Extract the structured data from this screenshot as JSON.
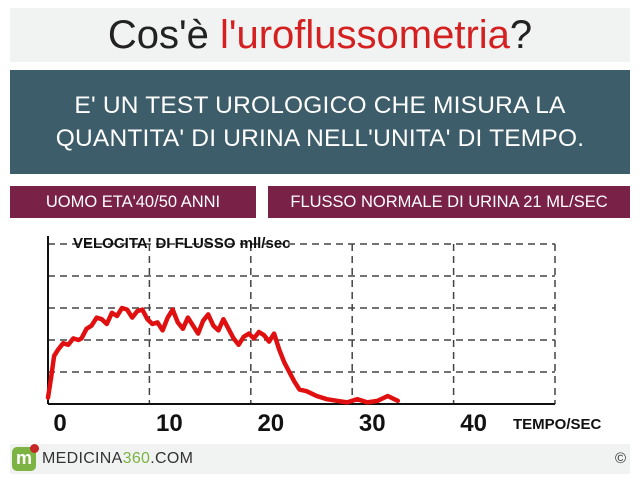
{
  "title": {
    "prefix": "Cos'è ",
    "highlight": "l'uroflussometria",
    "suffix": "?"
  },
  "description": {
    "line1": "E' UN TEST UROLOGICO CHE MISURA LA",
    "line2": "QUANTITA' DI URINA NELL'UNITA' DI TEMPO."
  },
  "tags": {
    "left": "UOMO ETA'40/50 ANNI",
    "right": "FLUSSO NORMALE DI URINA 21 ML/SEC"
  },
  "footer": {
    "logo_letter": "m",
    "brand_part1": "MEDICINA",
    "brand_part2": "360",
    "brand_part3": ".COM",
    "copyright": "©"
  },
  "colors": {
    "accent": "#d42020",
    "description_bg": "#3c5d69",
    "tag_bg": "#7a2148",
    "curve": "#e01010",
    "logo_green": "#7cb342"
  },
  "chart_data": {
    "type": "line",
    "ylabel": "VELOCITA' DI FLUSSO mll/sec",
    "xlabel": "TEMPO/SEC",
    "x_ticks": [
      0,
      10,
      20,
      30,
      40
    ],
    "xlim": [
      0,
      50
    ],
    "grid": "dashed",
    "grid_rows": 5,
    "series": [
      {
        "x": [
          0,
          0.3,
          0.6,
          1.0,
          1.5,
          2.0,
          2.5,
          3.0,
          3.3,
          3.8,
          4.3,
          4.8,
          5.3,
          5.8,
          6.3,
          6.8,
          7.3,
          7.8,
          8.3,
          8.8,
          9.3,
          9.8,
          10.3,
          10.8,
          11.3,
          11.8,
          12.3,
          12.8,
          13.3,
          13.8,
          14.3,
          14.8,
          15.3,
          15.8,
          16.3,
          16.8,
          17.3,
          17.8,
          18.3,
          18.8,
          19.3,
          19.8,
          20.3,
          20.8,
          21.3,
          21.8,
          22.3,
          22.8,
          23.3,
          23.8,
          24.3,
          24.8,
          25.5,
          26.5,
          27.5,
          28.5,
          29.5,
          30.5,
          31.5,
          32.5,
          33.5,
          34.5
        ],
        "y": [
          0.2,
          0.8,
          1.5,
          1.7,
          1.9,
          1.85,
          2.05,
          2.0,
          2.05,
          2.35,
          2.45,
          2.7,
          2.65,
          2.5,
          2.85,
          2.75,
          3.0,
          2.95,
          2.7,
          2.9,
          2.95,
          2.65,
          2.5,
          2.55,
          2.3,
          2.7,
          2.95,
          2.55,
          2.35,
          2.7,
          2.45,
          2.2,
          2.6,
          2.8,
          2.45,
          2.3,
          2.65,
          2.35,
          2.05,
          1.85,
          2.1,
          2.2,
          2.05,
          2.25,
          2.15,
          1.95,
          2.2,
          1.7,
          1.3,
          1.0,
          0.7,
          0.45,
          0.4,
          0.25,
          0.15,
          0.1,
          0.05,
          0.15,
          0.05,
          0.1,
          0.25,
          0.1
        ]
      }
    ]
  }
}
